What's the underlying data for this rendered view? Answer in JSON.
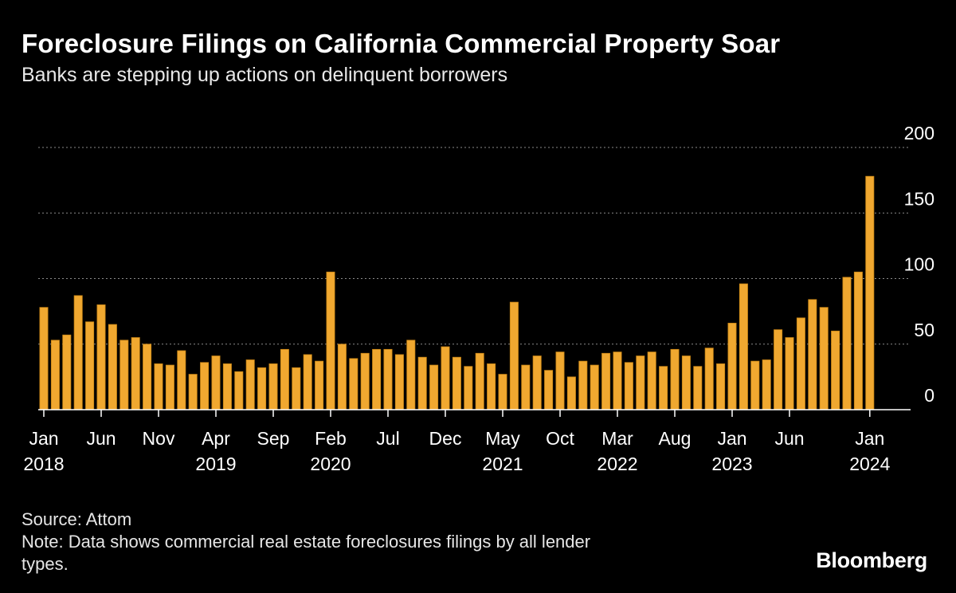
{
  "header": {
    "title": "Foreclosure Filings on California Commercial Property Soar",
    "subtitle": "Banks are stepping up actions on delinquent borrowers"
  },
  "footer": {
    "source": "Source: Attom",
    "note_line1": "Note: Data shows commercial real estate foreclosures filings by all lender",
    "note_line2": "types."
  },
  "brand": "Bloomberg",
  "colors": {
    "background": "#000000",
    "bar_fill": "#f0a830",
    "bar_edge": "#c98515",
    "grid": "#8a8a8a",
    "axis": "#ffffff",
    "text": "#ffffff"
  },
  "chart_data": {
    "type": "bar",
    "title": "Foreclosure Filings on California Commercial Property Soar",
    "subtitle": "Banks are stepping up actions on delinquent borrowers",
    "xlabel": "",
    "ylabel": "",
    "ylim": [
      0,
      200
    ],
    "yticks": [
      0,
      50,
      100,
      150,
      200
    ],
    "ytick_labels": [
      "0",
      "50",
      "100",
      "150",
      "200"
    ],
    "grid": true,
    "y_axis_side": "right",
    "x_ticks": [
      {
        "index": 0,
        "month": "Jan",
        "year": "2018"
      },
      {
        "index": 5,
        "month": "Jun",
        "year": ""
      },
      {
        "index": 10,
        "month": "Nov",
        "year": ""
      },
      {
        "index": 15,
        "month": "Apr",
        "year": "2019"
      },
      {
        "index": 20,
        "month": "Sep",
        "year": ""
      },
      {
        "index": 25,
        "month": "Feb",
        "year": "2020"
      },
      {
        "index": 30,
        "month": "Jul",
        "year": ""
      },
      {
        "index": 35,
        "month": "Dec",
        "year": ""
      },
      {
        "index": 40,
        "month": "May",
        "year": "2021"
      },
      {
        "index": 45,
        "month": "Oct",
        "year": ""
      },
      {
        "index": 50,
        "month": "Mar",
        "year": "2022"
      },
      {
        "index": 55,
        "month": "Aug",
        "year": ""
      },
      {
        "index": 60,
        "month": "Jan",
        "year": "2023"
      },
      {
        "index": 65,
        "month": "Jun",
        "year": ""
      },
      {
        "index": 72,
        "month": "Jan",
        "year": "2024"
      }
    ],
    "series": [
      {
        "name": "Foreclosure filings",
        "values": [
          78,
          53,
          57,
          87,
          67,
          80,
          65,
          53,
          55,
          50,
          35,
          34,
          45,
          27,
          36,
          41,
          35,
          29,
          38,
          32,
          35,
          46,
          32,
          42,
          37,
          105,
          50,
          39,
          43,
          46,
          46,
          42,
          53,
          40,
          34,
          48,
          40,
          33,
          43,
          35,
          27,
          82,
          34,
          41,
          30,
          44,
          25,
          37,
          34,
          43,
          44,
          36,
          41,
          44,
          33,
          46,
          41,
          33,
          47,
          35,
          66,
          96,
          37,
          38,
          61,
          55,
          70,
          84,
          78,
          60,
          101,
          105,
          178
        ]
      }
    ]
  }
}
